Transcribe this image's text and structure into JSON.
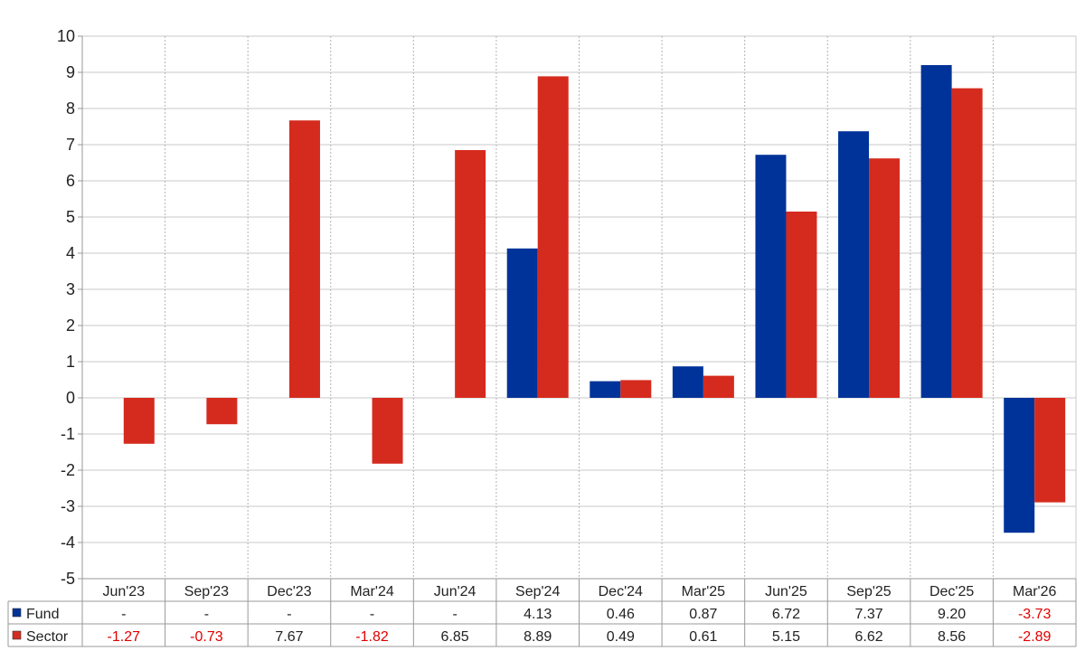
{
  "chart_data": {
    "type": "bar",
    "categories": [
      "Jun'23",
      "Sep'23",
      "Dec'23",
      "Mar'24",
      "Jun'24",
      "Sep'24",
      "Dec'24",
      "Mar'25",
      "Jun'25",
      "Sep'25",
      "Dec'25",
      "Mar'26"
    ],
    "series": [
      {
        "name": "Fund",
        "color": "#003399",
        "values": [
          null,
          null,
          null,
          null,
          null,
          4.13,
          0.46,
          0.87,
          6.72,
          7.37,
          9.2,
          -3.73
        ],
        "labels": [
          "-",
          "-",
          "-",
          "-",
          "-",
          "4.13",
          "0.46",
          "0.87",
          "6.72",
          "7.37",
          "9.20",
          "-3.73"
        ]
      },
      {
        "name": "Sector",
        "color": "#d52b1e",
        "values": [
          -1.27,
          -0.73,
          7.67,
          -1.82,
          6.85,
          8.89,
          0.49,
          0.61,
          5.15,
          6.62,
          8.56,
          -2.89
        ],
        "labels": [
          "-1.27",
          "-0.73",
          "7.67",
          "-1.82",
          "6.85",
          "8.89",
          "0.49",
          "0.61",
          "5.15",
          "6.62",
          "8.56",
          "-2.89"
        ]
      }
    ],
    "ylim": [
      -5,
      10
    ],
    "yticks": [
      "10",
      "9",
      "8",
      "7",
      "6",
      "5",
      "4",
      "3",
      "2",
      "1",
      "0",
      "-1",
      "-2",
      "-3",
      "-4",
      "-5"
    ],
    "grid": true,
    "legend": "data table below chart",
    "negative_label_color": "#e00000"
  }
}
